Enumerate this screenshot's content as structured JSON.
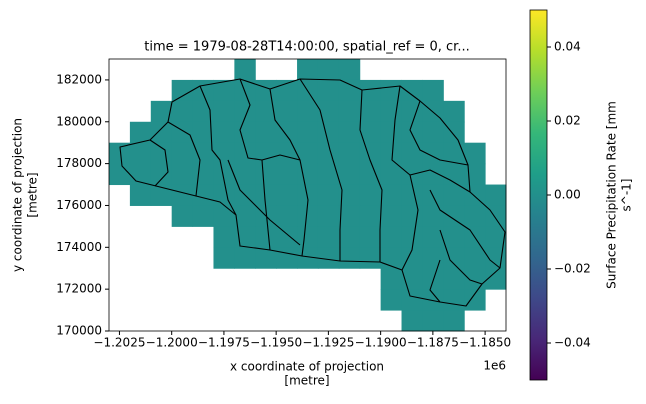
{
  "chart_data": {
    "type": "heatmap",
    "title": "time = 1979-08-28T14:00:00, spatial_ref = 0, cr...",
    "xlabel": [
      "x coordinate of projection",
      "[metre]"
    ],
    "ylabel": [
      "y coordinate of projection",
      "[metre]"
    ],
    "x_offset_label": "1e6",
    "xlim": [
      -1203000,
      -1184000
    ],
    "ylim": [
      170000,
      183000
    ],
    "xticks": [
      {
        "value": -1202500,
        "label": "−1.2025"
      },
      {
        "value": -1200000,
        "label": "−1.2000"
      },
      {
        "value": -1197500,
        "label": "−1.1975"
      },
      {
        "value": -1195000,
        "label": "−1.1950"
      },
      {
        "value": -1192500,
        "label": "−1.1925"
      },
      {
        "value": -1190000,
        "label": "−1.1900"
      },
      {
        "value": -1187500,
        "label": "−1.1875"
      },
      {
        "value": -1185000,
        "label": "−1.1850"
      }
    ],
    "yticks": [
      170000,
      172000,
      174000,
      176000,
      178000,
      180000,
      182000
    ],
    "cell_size": 1000,
    "values": [
      [
        null,
        null,
        null,
        null,
        null,
        null,
        0,
        null,
        null,
        0,
        0,
        0,
        null,
        null,
        null,
        null,
        null,
        null,
        null
      ],
      [
        null,
        null,
        null,
        0,
        0,
        0,
        0,
        0,
        0,
        0,
        0,
        0,
        0,
        0,
        0,
        0,
        null,
        null,
        null
      ],
      [
        null,
        null,
        0,
        0,
        0,
        0,
        0,
        0,
        0,
        0,
        0,
        0,
        0,
        0,
        0,
        0,
        0,
        null,
        null
      ],
      [
        null,
        0,
        0,
        0,
        0,
        0,
        0,
        0,
        0,
        0,
        0,
        0,
        0,
        0,
        0,
        0,
        0,
        null,
        null
      ],
      [
        0,
        0,
        0,
        0,
        0,
        0,
        0,
        0,
        0,
        0,
        0,
        0,
        0,
        0,
        0,
        0,
        0,
        0,
        null
      ],
      [
        0,
        0,
        0,
        0,
        0,
        0,
        0,
        0,
        0,
        0,
        0,
        0,
        0,
        0,
        0,
        0,
        0,
        0,
        null
      ],
      [
        null,
        0,
        0,
        0,
        0,
        0,
        0,
        0,
        0,
        0,
        0,
        0,
        0,
        0,
        0,
        0,
        0,
        0,
        0
      ],
      [
        null,
        null,
        null,
        0,
        0,
        0,
        0,
        0,
        0,
        0,
        0,
        0,
        0,
        0,
        0,
        0,
        0,
        0,
        0
      ],
      [
        null,
        null,
        null,
        null,
        null,
        0,
        0,
        0,
        0,
        0,
        0,
        0,
        0,
        0,
        0,
        0,
        0,
        0,
        0
      ],
      [
        null,
        null,
        null,
        null,
        null,
        0,
        0,
        0,
        0,
        0,
        0,
        0,
        0,
        0,
        0,
        0,
        0,
        0,
        0
      ],
      [
        null,
        null,
        null,
        null,
        null,
        null,
        null,
        null,
        null,
        null,
        null,
        null,
        null,
        0,
        0,
        0,
        0,
        0,
        0
      ],
      [
        null,
        null,
        null,
        null,
        null,
        null,
        null,
        null,
        null,
        null,
        null,
        null,
        null,
        0,
        0,
        0,
        0,
        0,
        null
      ],
      [
        null,
        null,
        null,
        null,
        null,
        null,
        null,
        null,
        null,
        null,
        null,
        null,
        null,
        null,
        0,
        0,
        0,
        null,
        null
      ]
    ],
    "colorbar": {
      "label": [
        "Surface Precipitation Rate [mm",
        "s^-1]"
      ],
      "lim": [
        -0.05,
        0.05
      ],
      "ticks": [
        {
          "value": -0.04,
          "label": "−0.04"
        },
        {
          "value": -0.02,
          "label": "−0.02"
        },
        {
          "value": 0,
          "label": "0.00"
        },
        {
          "value": 0.02,
          "label": "0.02"
        },
        {
          "value": 0.04,
          "label": "0.04"
        }
      ],
      "colors": [
        "#440154",
        "#482878",
        "#3e4989",
        "#31688e",
        "#26828e",
        "#1f9e89",
        "#35b779",
        "#6ece58",
        "#b5de2b",
        "#fde725"
      ]
    }
  }
}
